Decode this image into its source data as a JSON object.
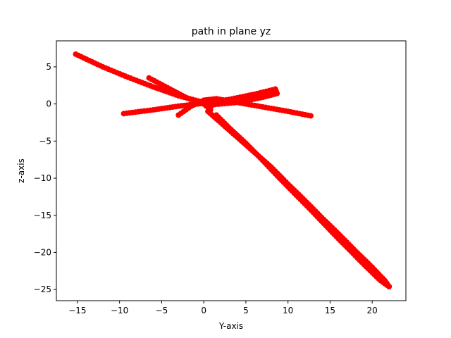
{
  "chart_data": {
    "type": "scatter",
    "title": "path in plane yz",
    "xlabel": "Y-axis",
    "ylabel": "z-axis",
    "xlim": [
      -17.5,
      24.0
    ],
    "ylim": [
      -26.5,
      8.5
    ],
    "xticks": [
      -15,
      -10,
      -5,
      0,
      5,
      10,
      15,
      20
    ],
    "yticks": [
      5,
      0,
      -5,
      -10,
      -15,
      -20,
      -25
    ],
    "grid": false,
    "marker_color": "#ff0000",
    "series": [
      {
        "marker": "circle",
        "polylines": [
          [
            [
              -15.2,
              6.7
            ],
            [
              -12,
              5.0
            ],
            [
              -9,
              3.6
            ],
            [
              -6,
              2.3
            ],
            [
              -3,
              1.1
            ],
            [
              0,
              0.2
            ],
            [
              1,
              -0.2
            ]
          ],
          [
            [
              -9.5,
              -1.3
            ],
            [
              -6,
              -0.8
            ],
            [
              -3,
              -0.3
            ],
            [
              0,
              0.1
            ],
            [
              3,
              0.6
            ],
            [
              6,
              1.3
            ],
            [
              8.5,
              2.0
            ],
            [
              8.7,
              1.4
            ],
            [
              7,
              0.9
            ],
            [
              4,
              0.2
            ],
            [
              1,
              -0.1
            ]
          ],
          [
            [
              -3,
              -1.5
            ],
            [
              -1.5,
              -0.3
            ],
            [
              0,
              0.5
            ],
            [
              1.5,
              0.7
            ],
            [
              4,
              0.2
            ],
            [
              7,
              -0.4
            ],
            [
              10,
              -1.0
            ],
            [
              12.7,
              -1.6
            ]
          ],
          [
            [
              -6.5,
              3.5
            ],
            [
              -4,
              2.0
            ],
            [
              -2,
              0.8
            ],
            [
              0,
              0.0
            ],
            [
              0.8,
              -0.8
            ]
          ],
          [
            [
              0.5,
              -1.0
            ],
            [
              2,
              -2.5
            ],
            [
              4,
              -4.5
            ],
            [
              6,
              -6.5
            ],
            [
              8,
              -8.5
            ],
            [
              10,
              -10.8
            ],
            [
              12,
              -13.0
            ],
            [
              14,
              -15.3
            ],
            [
              16,
              -17.5
            ],
            [
              18,
              -19.8
            ],
            [
              20,
              -22.0
            ],
            [
              21.5,
              -23.8
            ],
            [
              22,
              -24.6
            ]
          ],
          [
            [
              1.5,
              -1.5
            ],
            [
              3,
              -3.2
            ],
            [
              5,
              -5.3
            ],
            [
              7,
              -7.6
            ],
            [
              9,
              -10.0
            ],
            [
              11,
              -12.3
            ],
            [
              13,
              -14.6
            ],
            [
              15,
              -17.0
            ],
            [
              17,
              -19.3
            ],
            [
              19,
              -21.6
            ],
            [
              21,
              -23.8
            ],
            [
              22,
              -24.6
            ]
          ]
        ]
      }
    ]
  }
}
